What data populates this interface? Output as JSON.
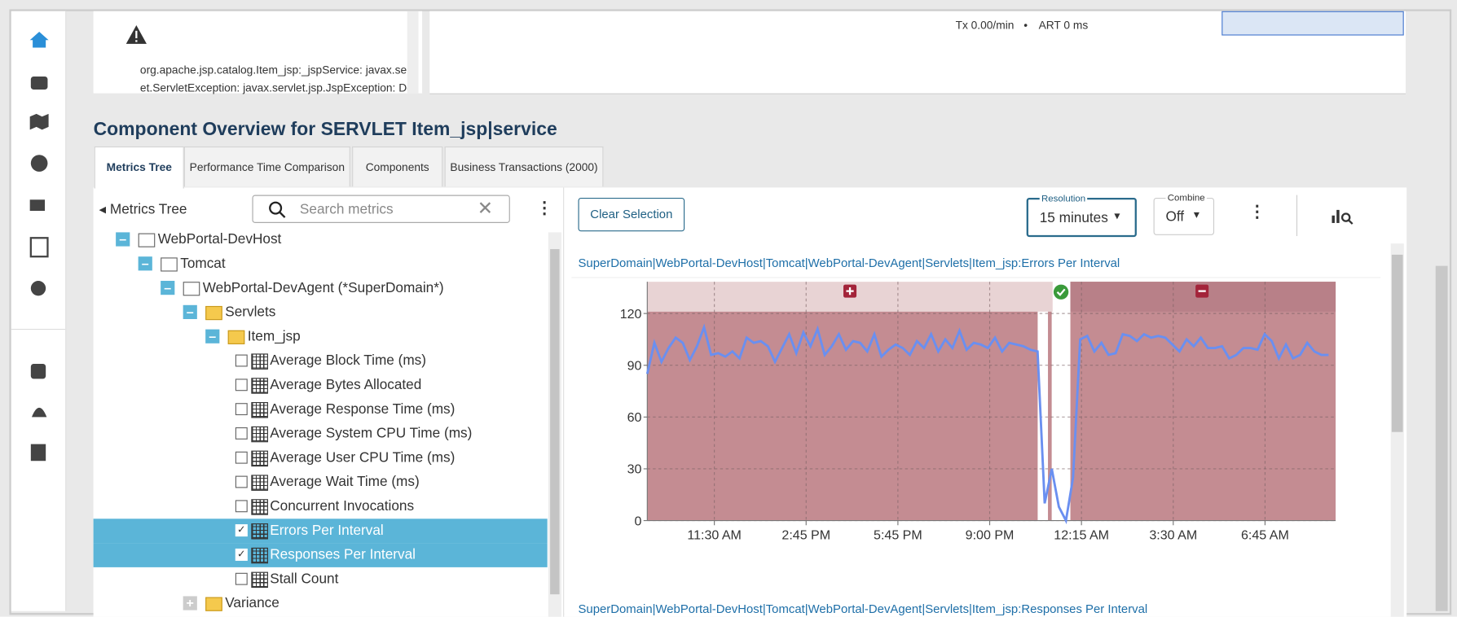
{
  "top": {
    "exception_line1": "org.apache.jsp.catalog.Item_jsp:_jspService: javax.servl",
    "exception_line2": "et.ServletException: javax.servlet.jsp.JspException: Defi",
    "tx": "Tx 0.00/min",
    "art": "ART 0 ms"
  },
  "header": {
    "title": "Component Overview for SERVLET Item_jsp|service"
  },
  "tabs": [
    "Metrics Tree",
    "Performance Time Comparison",
    "Components",
    "Business Transactions (2000)"
  ],
  "tree_panel": {
    "title": "Metrics Tree",
    "search_placeholder": "Search metrics"
  },
  "tree": [
    {
      "label": "WebPortal-DevHost",
      "level": 0,
      "kind": "host"
    },
    {
      "label": "Tomcat",
      "level": 1,
      "kind": "process"
    },
    {
      "label": "WebPortal-DevAgent (*SuperDomain*)",
      "level": 2,
      "kind": "agent"
    },
    {
      "label": "Servlets",
      "level": 3,
      "kind": "folder"
    },
    {
      "label": "Item_jsp",
      "level": 4,
      "kind": "folder"
    },
    {
      "label": "Average Block Time (ms)",
      "level": 5,
      "kind": "metric",
      "checked": false
    },
    {
      "label": "Average Bytes Allocated",
      "level": 5,
      "kind": "metric",
      "checked": false
    },
    {
      "label": "Average Response Time (ms)",
      "level": 5,
      "kind": "metric",
      "checked": false
    },
    {
      "label": "Average System CPU Time (ms)",
      "level": 5,
      "kind": "metric",
      "checked": false
    },
    {
      "label": "Average User CPU Time (ms)",
      "level": 5,
      "kind": "metric",
      "checked": false
    },
    {
      "label": "Average Wait Time (ms)",
      "level": 5,
      "kind": "metric",
      "checked": false
    },
    {
      "label": "Concurrent Invocations",
      "level": 5,
      "kind": "metric",
      "checked": false
    },
    {
      "label": "Errors Per Interval",
      "level": 5,
      "kind": "metric",
      "checked": true
    },
    {
      "label": "Responses Per Interval",
      "level": 5,
      "kind": "metric",
      "checked": true
    },
    {
      "label": "Stall Count",
      "level": 5,
      "kind": "metric",
      "checked": false
    },
    {
      "label": "Variance",
      "level": 3,
      "kind": "folder-collapsed"
    }
  ],
  "toolbar": {
    "clear": "Clear Selection",
    "resolution_label": "Resolution",
    "resolution": "15 minutes",
    "combine_label": "Combine",
    "combine": "Off"
  },
  "chart": {
    "type": "line",
    "title": "SuperDomain|WebPortal-DevHost|Tomcat|WebPortal-DevAgent|Servlets|Item_jsp:Errors Per Interval",
    "color": "#6a8ff0",
    "values": [
      85,
      103,
      92,
      100,
      106,
      103,
      93,
      101,
      112,
      96,
      97,
      95,
      98,
      94,
      106,
      103,
      104,
      101,
      92,
      100,
      108,
      97,
      109,
      101,
      111,
      96,
      101,
      108,
      99,
      104,
      103,
      98,
      108,
      95,
      99,
      102,
      100,
      96,
      104,
      100,
      108,
      98,
      105,
      100,
      110,
      99,
      103,
      102,
      100,
      106,
      98,
      103,
      102,
      101,
      99,
      98,
      10,
      30,
      8,
      0,
      25,
      105,
      107,
      98,
      103,
      96,
      97,
      108,
      107,
      104,
      108,
      106,
      107,
      106,
      102,
      98,
      105,
      101,
      106,
      100,
      100,
      101,
      94,
      96,
      100,
      100,
      99,
      108,
      104,
      94,
      102,
      94,
      96,
      103,
      98,
      96,
      96
    ],
    "xlim": [
      0,
      97.5
    ],
    "xticks": [
      {
        "value": 9.5,
        "label": "11:30 AM"
      },
      {
        "value": 22.5,
        "label": "2:45 PM"
      },
      {
        "value": 35.5,
        "label": "5:45 PM"
      },
      {
        "value": 48.5,
        "label": "9:00 PM"
      },
      {
        "value": 61.5,
        "label": "12:15 AM"
      },
      {
        "value": 74.5,
        "label": "3:30 AM"
      },
      {
        "value": 87.5,
        "label": "6:45 AM"
      }
    ],
    "ylim": [
      0,
      120
    ],
    "yticks": [
      0,
      30,
      60,
      90,
      120
    ],
    "grid": true
  },
  "next_chart_title": "SuperDomain|WebPortal-DevHost|Tomcat|WebPortal-DevAgent|Servlets|Item_jsp:Responses Per Interval"
}
